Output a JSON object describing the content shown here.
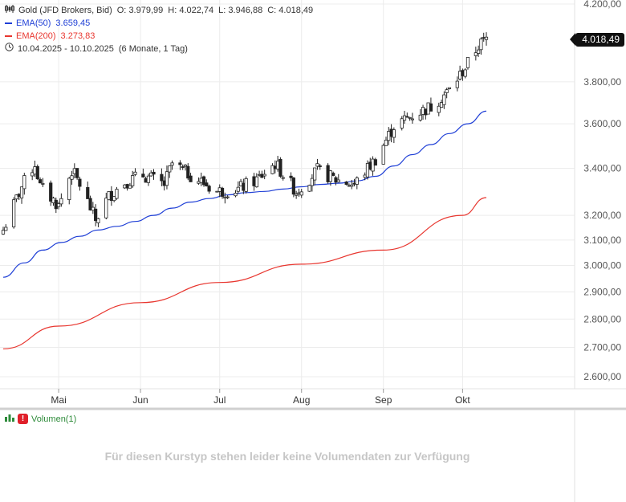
{
  "legend": {
    "instrument": "Gold (JFD Brokers, Bid)",
    "open_label": "O:",
    "open": "3.979,99",
    "high_label": "H:",
    "high": "4.022,74",
    "low_label": "L:",
    "low": "3.946,88",
    "close_label": "C:",
    "close": "4.018,49",
    "ema50_label": "EMA(50)",
    "ema50_value": "3.659,45",
    "ema200_label": "EMA(200)",
    "ema200_value": "3.273,83",
    "range": "10.04.2025 - 10.10.2025",
    "period": "(6 Monate, 1 Tag)"
  },
  "price_tag": "4.018,49",
  "volume": {
    "label": "Volumen(1)",
    "message": "Für diesen Kurstyp stehen leider keine Volumendaten zur Verfügung"
  },
  "colors": {
    "ema50": "#1f3fd6",
    "ema200": "#e8362f",
    "candle": "#222222",
    "grid": "#ececec"
  },
  "chart_data": {
    "type": "candlestick",
    "y_scale": "log",
    "ylim": [
      2560,
      4200
    ],
    "y_ticks": [
      4200,
      3800,
      3600,
      3400,
      3200,
      3100,
      3000,
      2900,
      2800,
      2700,
      2600
    ],
    "y_tick_labels": [
      "4.200,00",
      "3.800,00",
      "3.600,00",
      "3.400,00",
      "3.200,00",
      "3.100,00",
      "3.000,00",
      "2.900,00",
      "2.800,00",
      "2.700,00",
      "2.600,00"
    ],
    "x_labels": [
      "Mai",
      "Jun",
      "Jul",
      "Aug",
      "Sep",
      "Okt"
    ],
    "x_label_dates": [
      "2025-05-01",
      "2025-06-01",
      "2025-07-01",
      "2025-08-01",
      "2025-09-01",
      "2025-10-01"
    ],
    "x_range": [
      "2025-04-10",
      "2025-10-10"
    ],
    "series": [
      {
        "name": "EMA(50)",
        "kind": "line",
        "color": "#1f3fd6",
        "dates": [
          "2025-04-10",
          "2025-04-18",
          "2025-04-25",
          "2025-05-02",
          "2025-05-09",
          "2025-05-16",
          "2025-05-23",
          "2025-05-30",
          "2025-06-06",
          "2025-06-13",
          "2025-06-20",
          "2025-06-27",
          "2025-07-04",
          "2025-07-11",
          "2025-07-18",
          "2025-07-25",
          "2025-08-01",
          "2025-08-08",
          "2025-08-15",
          "2025-08-22",
          "2025-08-29",
          "2025-09-05",
          "2025-09-12",
          "2025-09-19",
          "2025-09-26",
          "2025-10-03",
          "2025-10-10"
        ],
        "values": [
          2955,
          3010,
          3060,
          3090,
          3115,
          3140,
          3155,
          3175,
          3200,
          3230,
          3255,
          3270,
          3285,
          3295,
          3300,
          3310,
          3320,
          3330,
          3335,
          3345,
          3365,
          3410,
          3460,
          3505,
          3555,
          3600,
          3659
        ]
      },
      {
        "name": "EMA(200)",
        "kind": "line",
        "color": "#e8362f",
        "dates": [
          "2025-04-10",
          "2025-05-01",
          "2025-06-01",
          "2025-07-01",
          "2025-08-01",
          "2025-09-01",
          "2025-10-01",
          "2025-10-10"
        ],
        "values": [
          2695,
          2775,
          2860,
          2935,
          3005,
          3060,
          3200,
          3274
        ]
      }
    ]
  }
}
